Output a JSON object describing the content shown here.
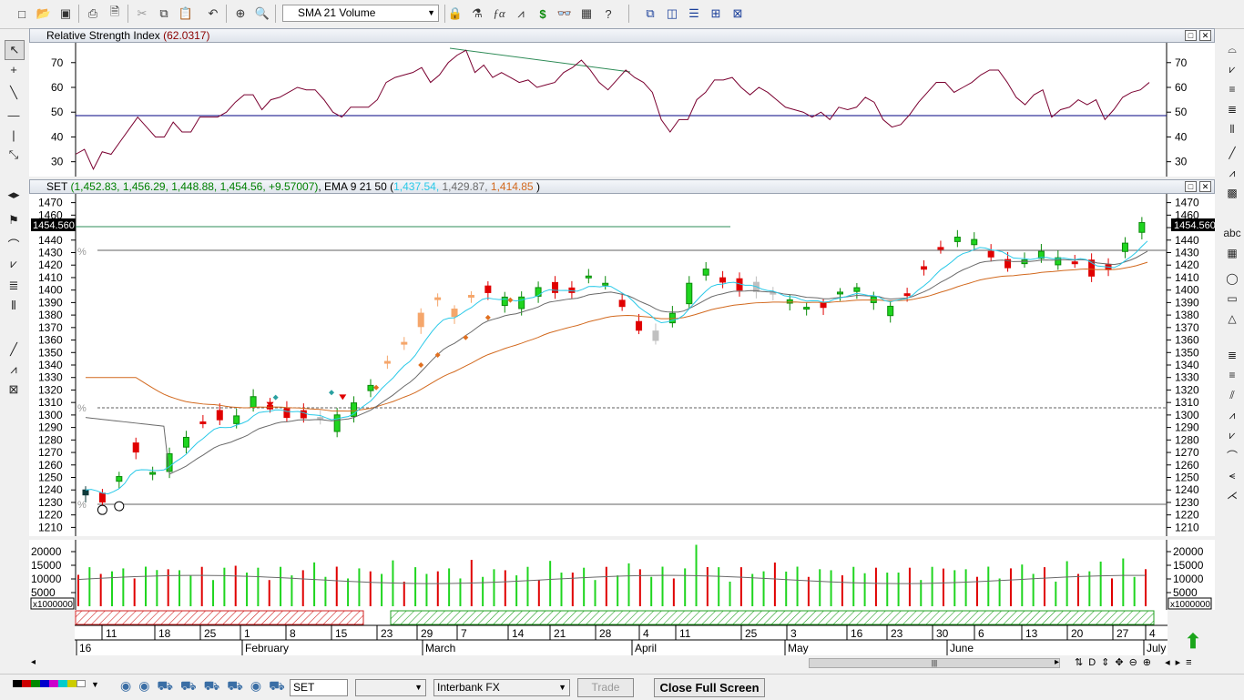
{
  "toolbar": {
    "indicator_combo": "SMA 21 Volume",
    "icons": [
      "new-icon",
      "open-icon",
      "save-icon",
      "print-icon",
      "print-preview-icon",
      "cut-icon",
      "copy-icon",
      "paste-icon",
      "undo-icon",
      "crosshair-icon",
      "zoom-icon",
      "indicator-icon",
      "lock-icon",
      "formula-icon",
      "chart-type-icon",
      "dollar-icon",
      "binoculars-icon",
      "grid-icon",
      "help-icon",
      "window-tile-icon",
      "window-cascade-icon",
      "window-horizontal-icon",
      "window-grid-icon",
      "window-arrange-icon"
    ]
  },
  "rsi_panel": {
    "title": "Relative Strength Index",
    "value": "(62.0317)",
    "y_ticks": [
      "70",
      "60",
      "50",
      "40",
      "30"
    ]
  },
  "price_panel": {
    "symbol": "SET",
    "ohlc": "(1,452.83, 1,456.29, 1,448.88, 1,454.56, +9.57007)",
    "ema_label": "EMA 9 21 50",
    "ema_open": "(",
    "ema1": "1,437.54,",
    "ema2": "1,429.87,",
    "ema3": "1,414.85",
    "ema_close": ")",
    "last_price": "1454.560",
    "y_ticks": [
      "1470",
      "1460",
      "1450",
      "1440",
      "1430",
      "1420",
      "1410",
      "1400",
      "1390",
      "1380",
      "1370",
      "1360",
      "1350",
      "1340",
      "1330",
      "1320",
      "1310",
      "1300",
      "1290",
      "1280",
      "1270",
      "1260",
      "1250",
      "1240",
      "1230",
      "1220",
      "1210"
    ],
    "percent_marker": "%"
  },
  "volume_panel": {
    "y_ticks": [
      "20000",
      "15000",
      "10000",
      "5000"
    ],
    "multiplier": "x1000000"
  },
  "date_axis": {
    "days": [
      "11",
      "18",
      "25",
      "1",
      "8",
      "15",
      "23",
      "29",
      "7",
      "14",
      "21",
      "28",
      "4",
      "11",
      "25",
      "3",
      "16",
      "23",
      "30",
      "6",
      "13",
      "20",
      "27",
      "4"
    ],
    "months": [
      "16",
      "February",
      "March",
      "April",
      "May",
      "June",
      "July"
    ]
  },
  "statusbar": {
    "symbol_value": "SET",
    "empty_combo": "",
    "fx_combo": "Interbank FX",
    "trade_button": "Trade",
    "close_fullscreen": "Close Full Screen"
  },
  "chart_data": {
    "type": "candlestick",
    "rsi_series": [
      33,
      35,
      27,
      34,
      33,
      38,
      43,
      48,
      44,
      40,
      40,
      46,
      42,
      42,
      48,
      48,
      48,
      50,
      54,
      57,
      57,
      51,
      55,
      56,
      58,
      60,
      59,
      59,
      55,
      50,
      48,
      52,
      52,
      52,
      55,
      62,
      64,
      65,
      66,
      68,
      62,
      65,
      70,
      73,
      75,
      66,
      69,
      64,
      66,
      64,
      62,
      63,
      60,
      61,
      62,
      66,
      68,
      71,
      67,
      62,
      59,
      63,
      67,
      64,
      62,
      58,
      47,
      42,
      47,
      47,
      55,
      58,
      63,
      63,
      64,
      60,
      57,
      60,
      58,
      55,
      52,
      51,
      50,
      48,
      50,
      47,
      52,
      51,
      52,
      56,
      54,
      47,
      44,
      45,
      49,
      54,
      58,
      62,
      62,
      58,
      60,
      62,
      65,
      67,
      67,
      62,
      56,
      53,
      57,
      59,
      48,
      51,
      52,
      55,
      53,
      55,
      47,
      51,
      56,
      58,
      59,
      62
    ],
    "rsi_ylim": [
      24,
      78
    ],
    "price_ylim": [
      1203,
      1477
    ],
    "volume_ylim": [
      0,
      23000
    ]
  },
  "colors": {
    "up": "#1fd51f",
    "down": "#e00000",
    "neutral": "#c0c0c0",
    "orange_candle": "#f5a66b",
    "dark_candle": "#0f3a3a",
    "ema_fast": "#29c9e8",
    "ema_mid": "#6a6a6a",
    "ema_slow": "#d2691e",
    "rsi_line": "#7a0030",
    "rsi_mid": "#000080"
  }
}
